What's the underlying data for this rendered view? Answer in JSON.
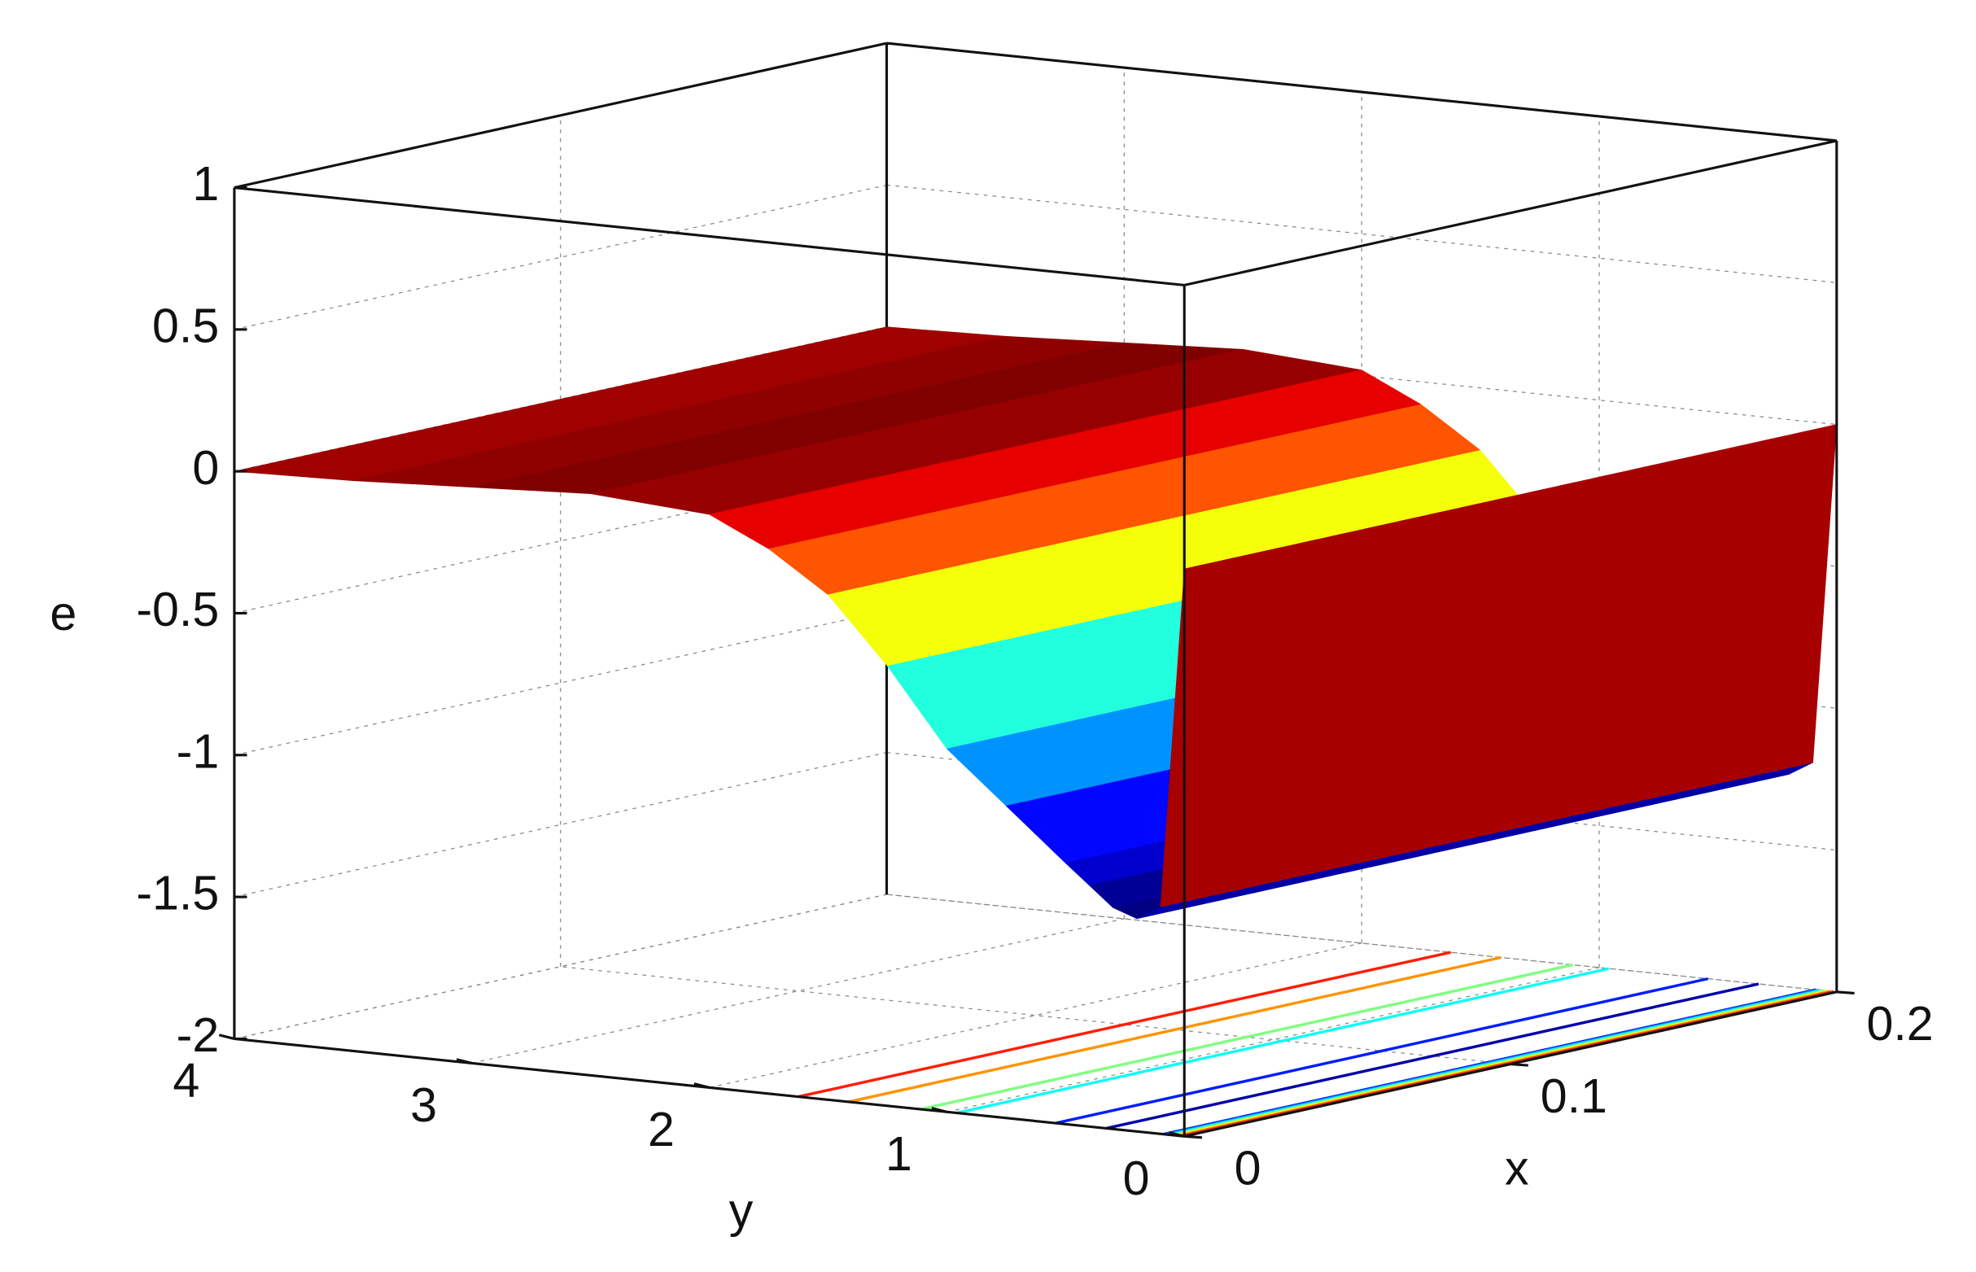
{
  "chart_data": {
    "type": "surface",
    "xlabel": "x",
    "ylabel": "y",
    "zlabel": "e",
    "xlim": [
      0,
      0.2
    ],
    "xticks": [
      0,
      0.1,
      0.2
    ],
    "ylim": [
      0,
      4
    ],
    "yticks": [
      0,
      1,
      2,
      3,
      4
    ],
    "zlim": [
      -2,
      1
    ],
    "zticks": [
      -2,
      -1.5,
      -1,
      -0.5,
      0,
      0.5,
      1
    ],
    "y": [
      0,
      0.1,
      0.2,
      0.3,
      0.4,
      0.5,
      0.75,
      1,
      1.25,
      1.5,
      1.75,
      2,
      2.5,
      3,
      3.5,
      4
    ],
    "z": [
      0,
      -1.2,
      -1.25,
      -1.22,
      -1.15,
      -1.08,
      -0.9,
      -0.72,
      -0.45,
      -0.22,
      -0.08,
      0.02,
      0.05,
      0.03,
      0.01,
      0
    ],
    "contour_levels": [
      -1.2,
      -1.05,
      -0.9,
      -0.75,
      -0.6,
      -0.45,
      -0.3,
      -0.15
    ],
    "colormap": "jet",
    "grid": true
  }
}
